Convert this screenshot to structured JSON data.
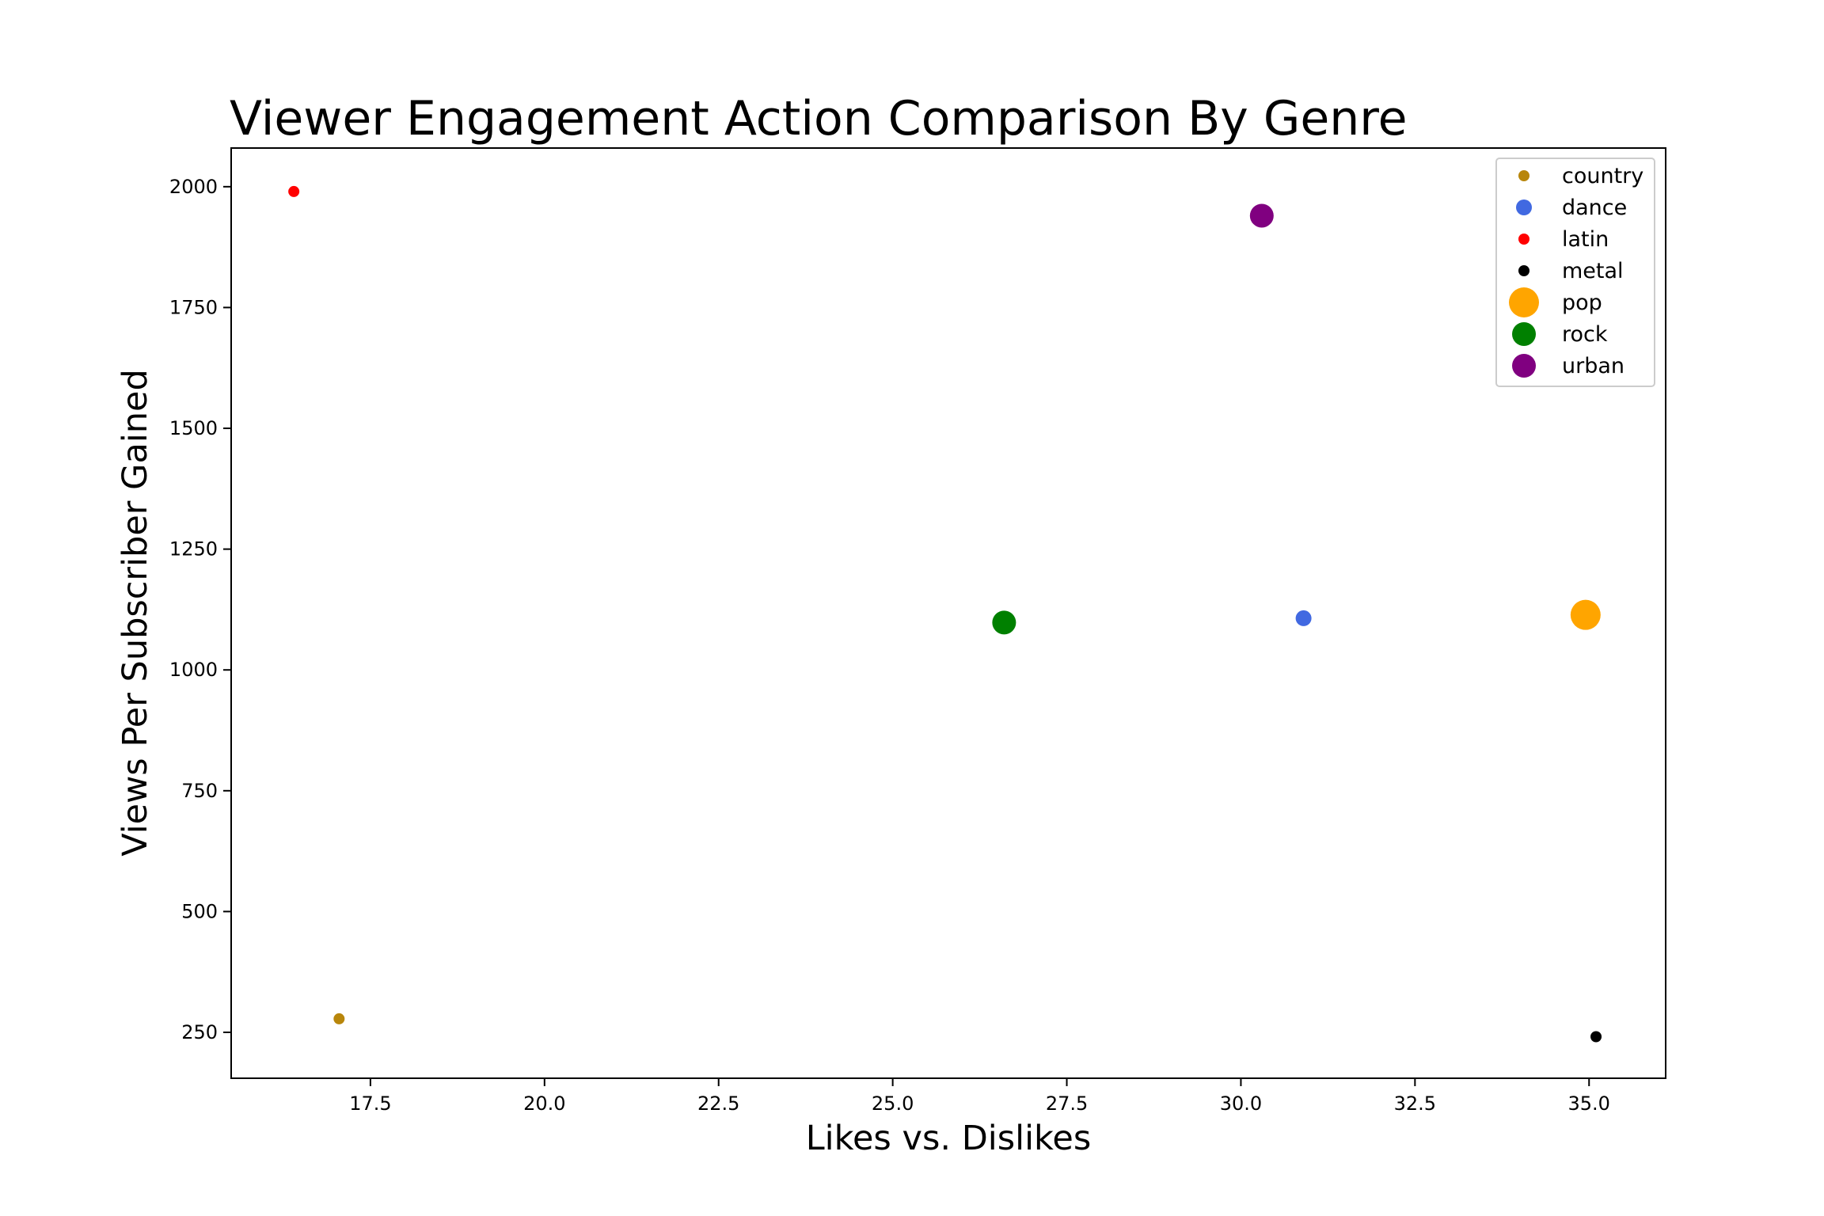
{
  "chart_data": {
    "type": "scatter",
    "title": "Viewer Engagement Action Comparison By Genre",
    "xlabel": "Likes vs. Dislikes",
    "ylabel": "Views Per Subscriber Gained",
    "xlim": [
      15.5,
      36.1
    ],
    "ylim": [
      155,
      2080
    ],
    "xticks": [
      17.5,
      20.0,
      22.5,
      25.0,
      27.5,
      30.0,
      32.5,
      35.0
    ],
    "xtick_labels": [
      "17.5",
      "20.0",
      "22.5",
      "25.0",
      "27.5",
      "30.0",
      "32.5",
      "35.0"
    ],
    "yticks": [
      250,
      500,
      750,
      1000,
      1250,
      1500,
      1750,
      2000
    ],
    "ytick_labels": [
      "250",
      "500",
      "750",
      "1000",
      "1250",
      "1500",
      "1750",
      "2000"
    ],
    "grid": false,
    "legend_position": "top-right",
    "series": [
      {
        "name": "country",
        "color": "#b8860b",
        "size": "small",
        "x": 17.05,
        "y": 278
      },
      {
        "name": "dance",
        "color": "#4169e1",
        "size": "medium",
        "x": 30.9,
        "y": 1107
      },
      {
        "name": "latin",
        "color": "#ff0000",
        "size": "small",
        "x": 16.4,
        "y": 1990
      },
      {
        "name": "metal",
        "color": "#000000",
        "size": "small",
        "x": 35.1,
        "y": 241
      },
      {
        "name": "pop",
        "color": "#ffa500",
        "size": "xlarge",
        "x": 34.95,
        "y": 1114
      },
      {
        "name": "rock",
        "color": "#008000",
        "size": "large",
        "x": 26.6,
        "y": 1098
      },
      {
        "name": "urban",
        "color": "#800080",
        "size": "large",
        "x": 30.3,
        "y": 1940
      }
    ]
  }
}
